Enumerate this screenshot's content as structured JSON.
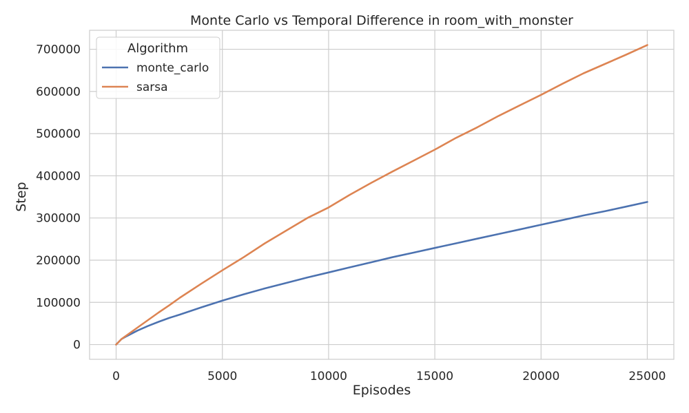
{
  "chart_data": {
    "type": "line",
    "title": "Monte Carlo vs Temporal Difference in room_with_monster",
    "xlabel": "Episodes",
    "ylabel": "Step",
    "xlim": [
      -1250,
      26250
    ],
    "ylim": [
      -35000,
      745000
    ],
    "x_ticks": [
      0,
      5000,
      10000,
      15000,
      20000,
      25000
    ],
    "y_ticks": [
      0,
      100000,
      200000,
      300000,
      400000,
      500000,
      600000,
      700000
    ],
    "grid": true,
    "legend": {
      "title": "Algorithm",
      "placement": "top-left"
    },
    "series": [
      {
        "name": "monte_carlo",
        "color": "#4c72b0",
        "x": [
          0,
          250,
          500,
          1000,
          1500,
          2000,
          2500,
          3000,
          4000,
          5000,
          6000,
          7000,
          8000,
          9000,
          10000,
          11000,
          12000,
          13000,
          14000,
          15000,
          16000,
          17000,
          18000,
          19000,
          20000,
          21000,
          22000,
          23000,
          24000,
          25000
        ],
        "y": [
          0,
          13000,
          20000,
          33000,
          44000,
          54000,
          63000,
          71000,
          88000,
          104000,
          119000,
          133000,
          146000,
          159000,
          171000,
          183000,
          195000,
          207000,
          218000,
          229000,
          240000,
          251000,
          262000,
          273000,
          284000,
          295000,
          306000,
          316000,
          327000,
          338000
        ]
      },
      {
        "name": "sarsa",
        "color": "#dd8452",
        "x": [
          0,
          250,
          500,
          1000,
          1500,
          2000,
          2500,
          3000,
          4000,
          5000,
          6000,
          7000,
          8000,
          9000,
          10000,
          11000,
          12000,
          13000,
          14000,
          15000,
          16000,
          17000,
          18000,
          19000,
          20000,
          21000,
          22000,
          23000,
          24000,
          25000
        ],
        "y": [
          0,
          13000,
          22000,
          40000,
          58000,
          76000,
          93000,
          111000,
          144000,
          176000,
          207000,
          240000,
          270000,
          300000,
          325000,
          355000,
          383000,
          410000,
          436000,
          462000,
          490000,
          515000,
          542000,
          567000,
          592000,
          618000,
          643000,
          665000,
          687000,
          710000
        ]
      }
    ]
  }
}
